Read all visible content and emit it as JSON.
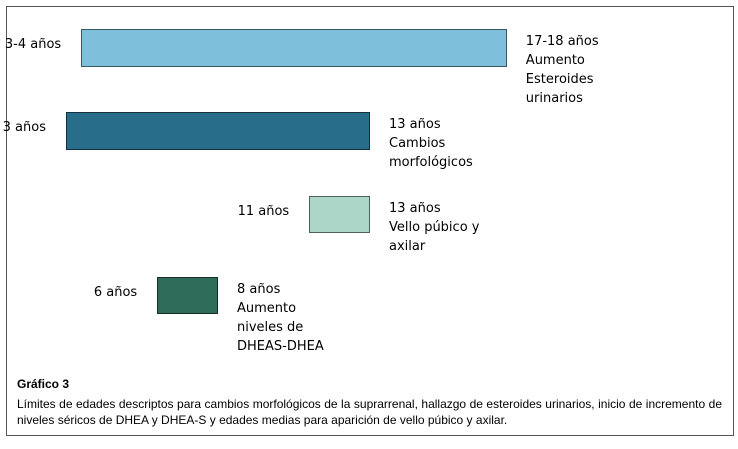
{
  "chart_data": {
    "type": "bar",
    "orientation": "horizontal-range",
    "xlim": [
      3,
      18
    ],
    "bars": [
      {
        "start": 3.5,
        "end": 17.5,
        "start_label": "3-4 años",
        "end_label": [
          "17-18 años",
          "Aumento",
          "Esteroides",
          "urinarios"
        ],
        "color": "#7ebfdc"
      },
      {
        "start": 3,
        "end": 13,
        "start_label": "3 años",
        "end_label": [
          "13 años",
          "Cambios",
          "morfológicos"
        ],
        "color": "#286e8a"
      },
      {
        "start": 11,
        "end": 13,
        "start_label": "11 años",
        "end_label": [
          "13 años",
          "Vello púbico y",
          "axilar"
        ],
        "color": "#acd6c8"
      },
      {
        "start": 6,
        "end": 8,
        "start_label": "6 años",
        "end_label": [
          "8 años",
          "Aumento",
          "niveles de",
          "DHEAS-DHEA"
        ],
        "color": "#2e6b58"
      }
    ]
  },
  "caption": {
    "title": "Gráfico 3",
    "text": "Límites de edades descriptos para cambios morfológicos de la suprarrenal, hallazgo de esteroides urinarios, inicio de incremento de niveles séricos de DHEA y DHEA-S y edades medias para aparición de vello púbico y axilar."
  }
}
